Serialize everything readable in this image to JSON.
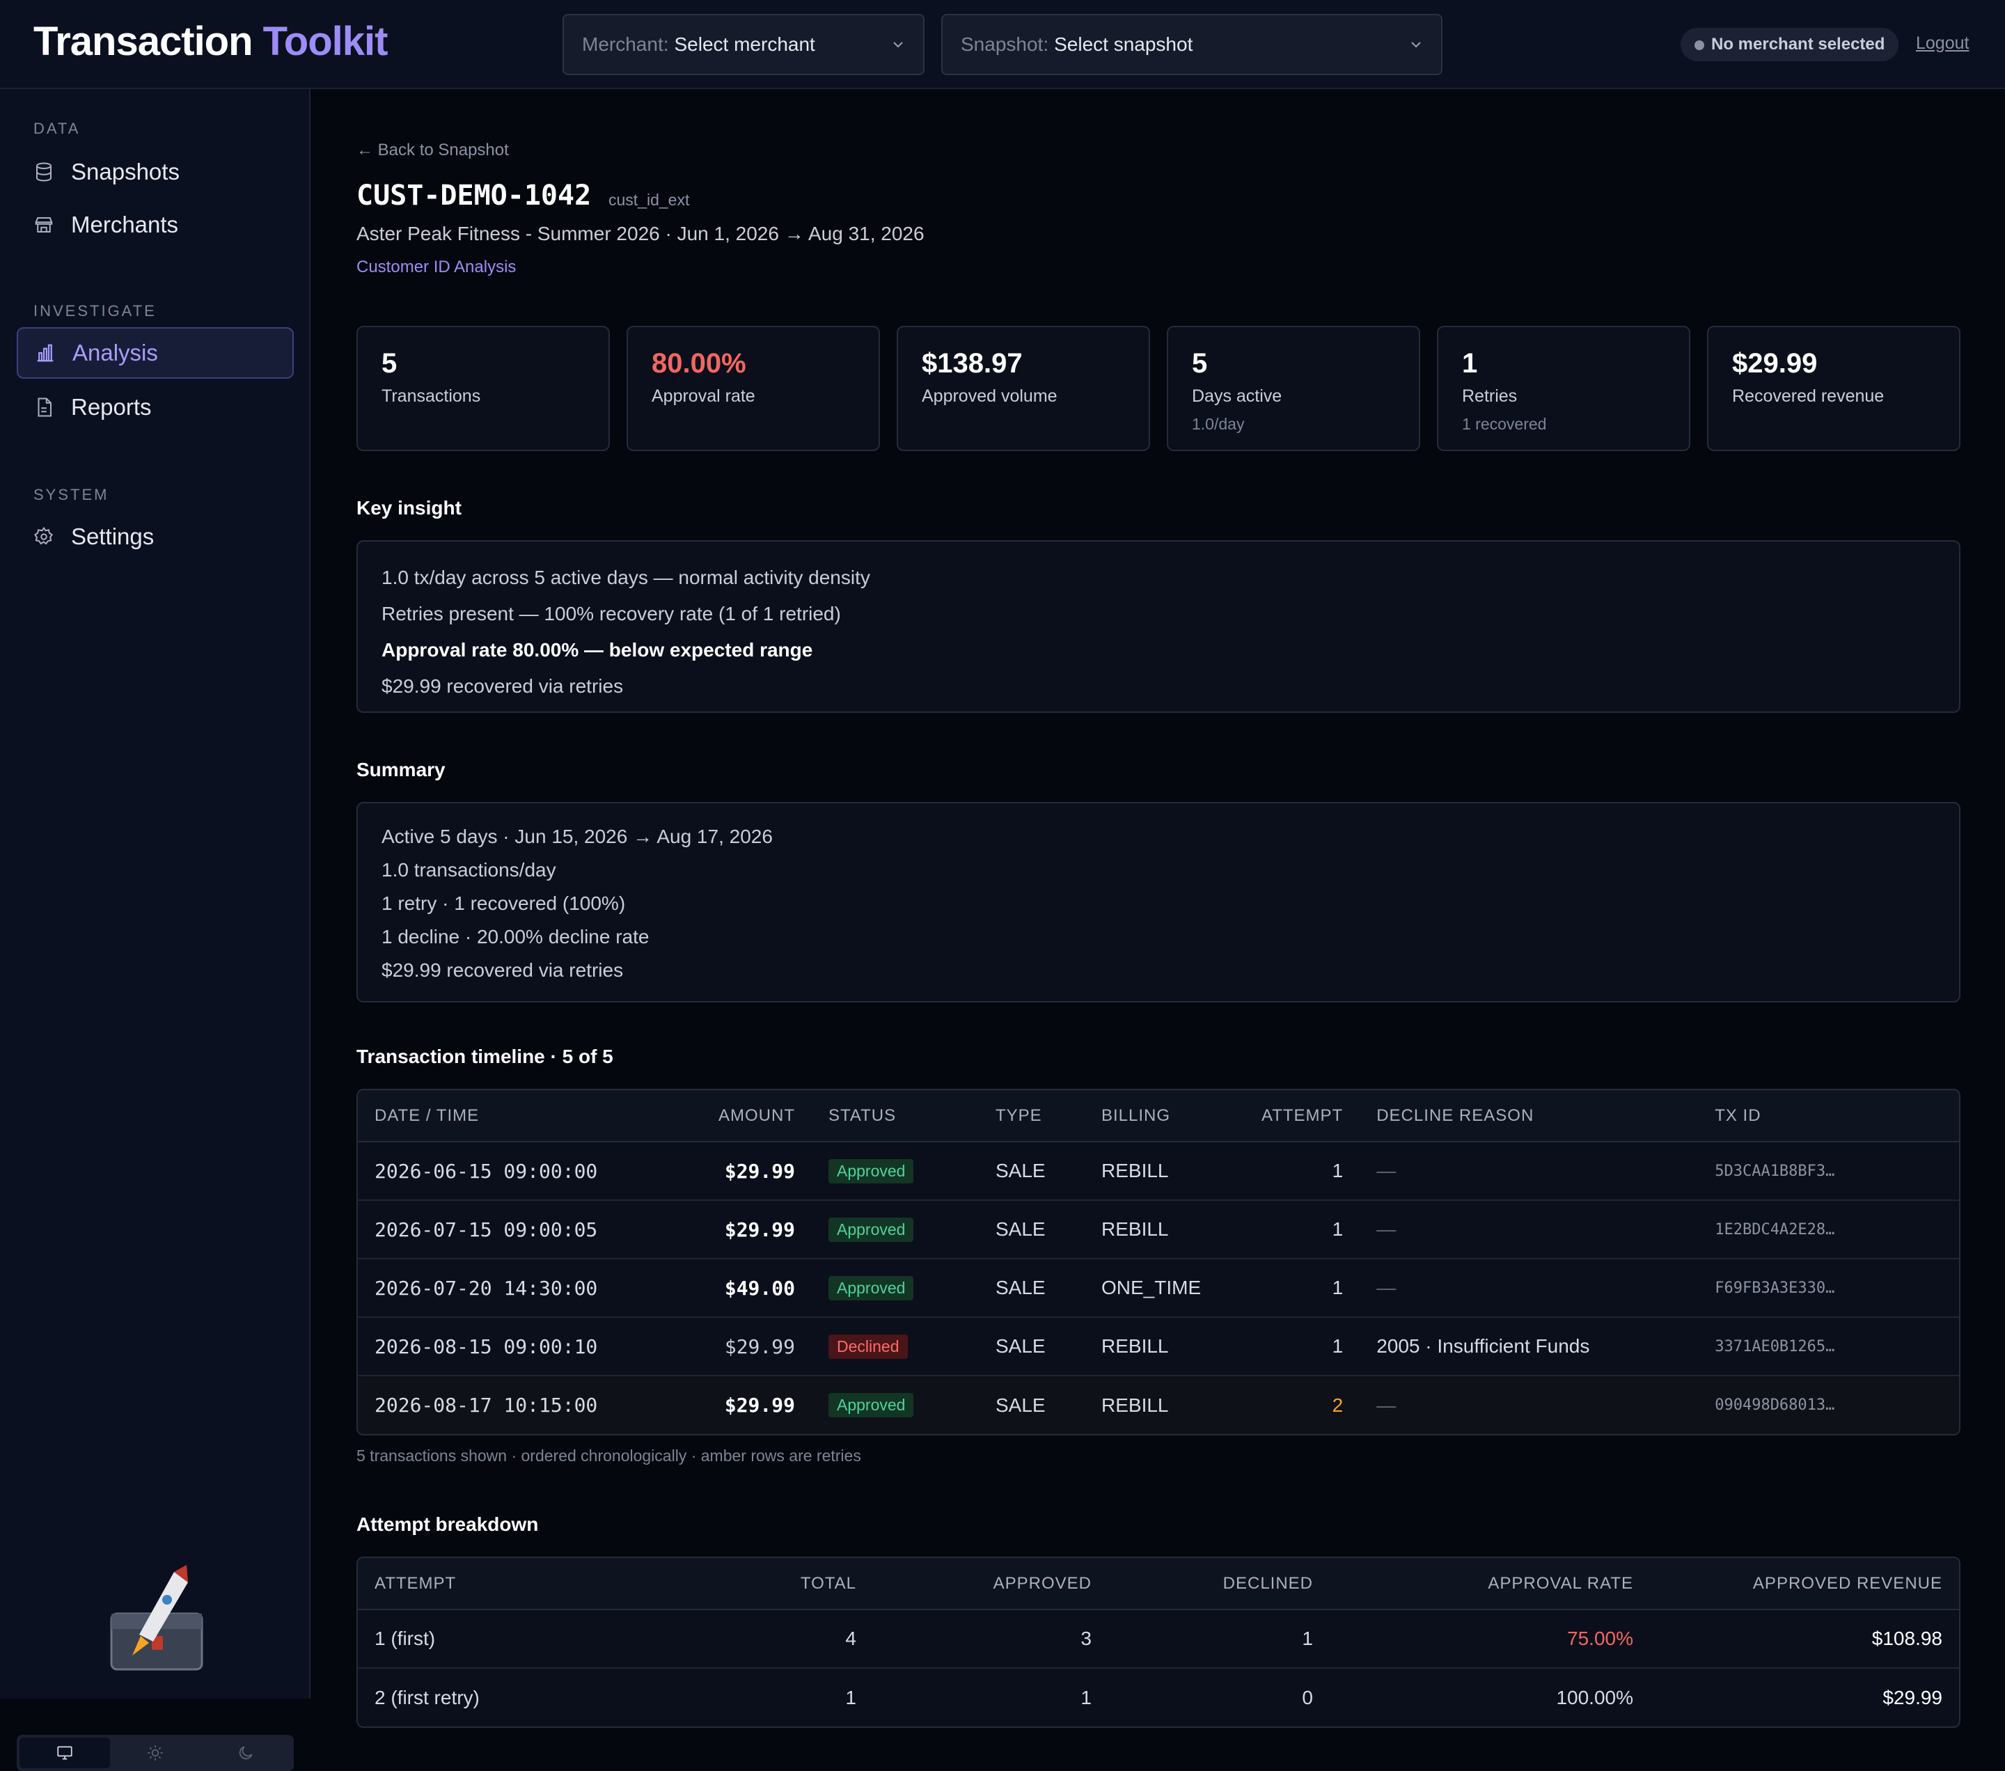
{
  "app": {
    "title_main": "Transaction",
    "title_accent": "Toolkit"
  },
  "header": {
    "merchant_label": "Merchant:",
    "merchant_value": "Select merchant",
    "snapshot_label": "Snapshot:",
    "snapshot_value": "Select snapshot",
    "status": "No merchant selected",
    "logout": "Logout"
  },
  "sidebar": {
    "sections": [
      {
        "label": "DATA",
        "items": [
          {
            "label": "Snapshots",
            "icon": "database-icon"
          },
          {
            "label": "Merchants",
            "icon": "store-icon"
          }
        ]
      },
      {
        "label": "INVESTIGATE",
        "items": [
          {
            "label": "Analysis",
            "icon": "bar-chart-icon",
            "active": true
          },
          {
            "label": "Reports",
            "icon": "document-icon"
          }
        ]
      },
      {
        "label": "SYSTEM",
        "items": [
          {
            "label": "Settings",
            "icon": "gear-icon"
          }
        ]
      }
    ],
    "theme_options": [
      "monitor-icon",
      "sun-icon",
      "moon-icon"
    ],
    "theme_selected": "monitor-icon"
  },
  "page": {
    "back_link": "← Back to Snapshot",
    "customer_id": "CUST-DEMO-1042",
    "customer_field": "cust_id_ext",
    "subtitle": "Aster Peak Fitness - Summer 2026 · Jun 1, 2026 → Aug 31, 2026",
    "analysis_link": "Customer ID Analysis"
  },
  "kpis": [
    {
      "value": "5",
      "label": "Transactions",
      "sub": ""
    },
    {
      "value": "80.00%",
      "label": "Approval rate",
      "sub": "",
      "color": "#f4665f"
    },
    {
      "value": "$138.97",
      "label": "Approved volume",
      "sub": ""
    },
    {
      "value": "5",
      "label": "Days active",
      "sub": "1.0/day"
    },
    {
      "value": "1",
      "label": "Retries",
      "sub": "1 recovered"
    },
    {
      "value": "$29.99",
      "label": "Recovered revenue",
      "sub": ""
    }
  ],
  "insight": {
    "title": "Key insight",
    "lines": [
      "1.0 tx/day across 5 active days — normal activity density",
      "Retries present — 100% recovery rate (1 of 1 retried)",
      "Approval rate 80.00% — below expected range",
      "$29.99 recovered via retries"
    ]
  },
  "summary": {
    "title": "Summary",
    "lines": [
      "Active 5 days · Jun 15, 2026 → Aug 17, 2026",
      "1.0 transactions/day",
      "1 retry · 1 recovered (100%)",
      "1 decline · 20.00% decline rate",
      "$29.99 recovered via retries"
    ]
  },
  "timeline": {
    "title": "Transaction timeline · 5 of 5",
    "columns": [
      "DATE / TIME",
      "AMOUNT",
      "STATUS",
      "TYPE",
      "BILLING",
      "ATTEMPT",
      "DECLINE REASON",
      "TX ID"
    ],
    "rows": [
      {
        "datetime": "2026-06-15 09:00:00",
        "amount": "$29.99",
        "status": "Approved",
        "type": "SALE",
        "billing": "REBILL",
        "attempt": "1",
        "reason": "—",
        "txid": "5D3CAA1B8BF3…"
      },
      {
        "datetime": "2026-07-15 09:00:05",
        "amount": "$29.99",
        "status": "Approved",
        "type": "SALE",
        "billing": "REBILL",
        "attempt": "1",
        "reason": "—",
        "txid": "1E2BDC4A2E28…"
      },
      {
        "datetime": "2026-07-20 14:30:00",
        "amount": "$49.00",
        "status": "Approved",
        "type": "SALE",
        "billing": "ONE_TIME",
        "attempt": "1",
        "reason": "—",
        "txid": "F69FB3A3E330…"
      },
      {
        "datetime": "2026-08-15 09:00:10",
        "amount": "$29.99",
        "status": "Declined",
        "type": "SALE",
        "billing": "REBILL",
        "attempt": "1",
        "reason": "2005 · Insufficient Funds",
        "txid": "3371AE0B1265…"
      },
      {
        "datetime": "2026-08-17 10:15:00",
        "amount": "$29.99",
        "status": "Approved",
        "type": "SALE",
        "billing": "REBILL",
        "attempt": "2",
        "reason": "—",
        "txid": "090498D68013…",
        "retry": true
      }
    ],
    "note": "5 transactions shown · ordered chronologically · amber rows are retries"
  },
  "attempts": {
    "title": "Attempt breakdown",
    "columns": [
      "ATTEMPT",
      "TOTAL",
      "APPROVED",
      "DECLINED",
      "APPROVAL RATE",
      "APPROVED REVENUE"
    ],
    "rows": [
      {
        "attempt": "1 (first)",
        "total": "4",
        "approved": "3",
        "declined": "1",
        "rate": "75.00%",
        "revenue": "$108.98",
        "rate_red": true
      },
      {
        "attempt": "2 (first retry)",
        "total": "1",
        "approved": "1",
        "declined": "0",
        "rate": "100.00%",
        "revenue": "$29.99"
      }
    ]
  }
}
